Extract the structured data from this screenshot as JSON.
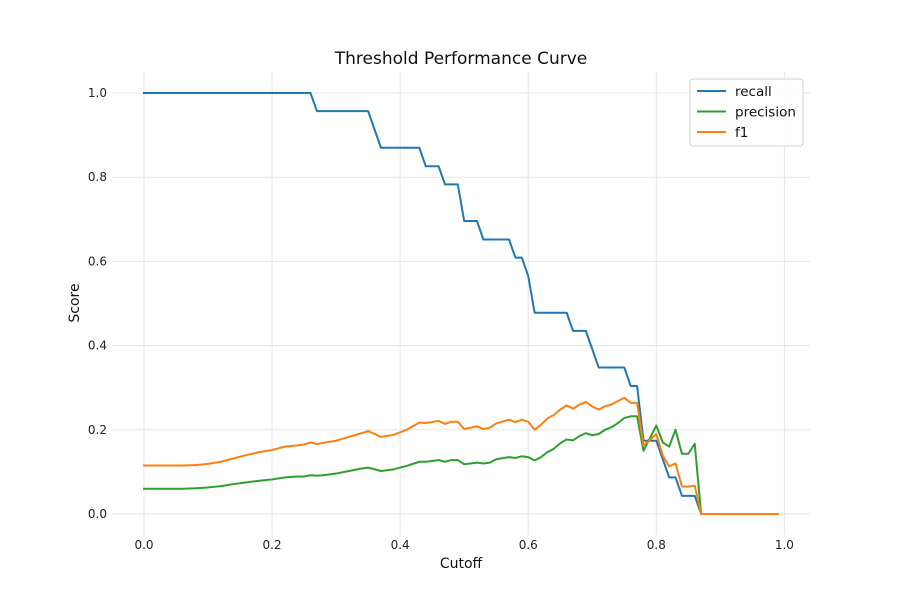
{
  "chart_data": {
    "type": "line",
    "title": "Threshold Performance Curve",
    "xlabel": "Cutoff",
    "ylabel": "Score",
    "xlim": [
      -0.05,
      1.04
    ],
    "ylim": [
      -0.05,
      1.05
    ],
    "xticks": [
      0.0,
      0.2,
      0.4,
      0.6,
      0.8,
      1.0
    ],
    "xtick_labels": [
      "0.0",
      "0.2",
      "0.4",
      "0.6",
      "0.8",
      "1.0"
    ],
    "yticks": [
      0.0,
      0.2,
      0.4,
      0.6,
      0.8,
      1.0
    ],
    "ytick_labels": [
      "0.0",
      "0.2",
      "0.4",
      "0.6",
      "0.8",
      "1.0"
    ],
    "grid": true,
    "legend_position": "top-right",
    "series": [
      {
        "name": "recall",
        "color": "#1f77b4",
        "x": [
          0.0,
          0.26,
          0.27,
          0.35,
          0.37,
          0.43,
          0.44,
          0.46,
          0.47,
          0.49,
          0.5,
          0.52,
          0.53,
          0.57,
          0.58,
          0.59,
          0.6,
          0.61,
          0.66,
          0.67,
          0.69,
          0.71,
          0.75,
          0.76,
          0.77,
          0.78,
          0.8,
          0.82,
          0.83,
          0.84,
          0.85,
          0.86,
          0.87,
          0.99
        ],
        "y": [
          1.0,
          1.0,
          0.957,
          0.957,
          0.87,
          0.87,
          0.826,
          0.826,
          0.783,
          0.783,
          0.696,
          0.696,
          0.652,
          0.652,
          0.609,
          0.609,
          0.565,
          0.478,
          0.478,
          0.435,
          0.435,
          0.348,
          0.348,
          0.304,
          0.304,
          0.174,
          0.174,
          0.087,
          0.087,
          0.043,
          0.043,
          0.043,
          0.0,
          0.0
        ]
      },
      {
        "name": "precision",
        "color": "#2ca02c",
        "x": [
          0.0,
          0.02,
          0.04,
          0.06,
          0.08,
          0.1,
          0.12,
          0.14,
          0.16,
          0.18,
          0.2,
          0.22,
          0.24,
          0.25,
          0.26,
          0.27,
          0.28,
          0.3,
          0.32,
          0.34,
          0.35,
          0.37,
          0.39,
          0.41,
          0.43,
          0.44,
          0.46,
          0.47,
          0.48,
          0.49,
          0.5,
          0.52,
          0.53,
          0.54,
          0.55,
          0.57,
          0.58,
          0.59,
          0.6,
          0.61,
          0.62,
          0.63,
          0.64,
          0.65,
          0.66,
          0.67,
          0.68,
          0.69,
          0.7,
          0.71,
          0.72,
          0.73,
          0.74,
          0.75,
          0.76,
          0.77,
          0.78,
          0.79,
          0.8,
          0.81,
          0.82,
          0.83,
          0.84,
          0.85,
          0.86,
          0.87,
          0.99
        ],
        "y": [
          0.06,
          0.06,
          0.06,
          0.06,
          0.061,
          0.063,
          0.066,
          0.071,
          0.075,
          0.079,
          0.082,
          0.087,
          0.089,
          0.089,
          0.092,
          0.091,
          0.092,
          0.096,
          0.102,
          0.108,
          0.11,
          0.102,
          0.106,
          0.114,
          0.124,
          0.124,
          0.128,
          0.124,
          0.128,
          0.128,
          0.118,
          0.122,
          0.12,
          0.122,
          0.13,
          0.135,
          0.133,
          0.137,
          0.135,
          0.127,
          0.135,
          0.147,
          0.155,
          0.168,
          0.177,
          0.175,
          0.185,
          0.192,
          0.187,
          0.19,
          0.2,
          0.206,
          0.216,
          0.228,
          0.232,
          0.232,
          0.15,
          0.18,
          0.21,
          0.17,
          0.16,
          0.2,
          0.143,
          0.143,
          0.167,
          0.0,
          0.0
        ]
      },
      {
        "name": "f1",
        "color": "#ff7f0e",
        "x": [
          0.0,
          0.02,
          0.04,
          0.06,
          0.08,
          0.1,
          0.12,
          0.14,
          0.16,
          0.18,
          0.2,
          0.22,
          0.24,
          0.25,
          0.26,
          0.27,
          0.28,
          0.3,
          0.32,
          0.34,
          0.35,
          0.37,
          0.39,
          0.41,
          0.43,
          0.44,
          0.46,
          0.47,
          0.48,
          0.49,
          0.5,
          0.52,
          0.53,
          0.54,
          0.55,
          0.57,
          0.58,
          0.59,
          0.6,
          0.61,
          0.62,
          0.63,
          0.64,
          0.65,
          0.66,
          0.67,
          0.68,
          0.69,
          0.7,
          0.71,
          0.72,
          0.73,
          0.74,
          0.75,
          0.76,
          0.77,
          0.78,
          0.79,
          0.8,
          0.81,
          0.82,
          0.83,
          0.84,
          0.85,
          0.86,
          0.87,
          0.99
        ],
        "y": [
          0.115,
          0.115,
          0.115,
          0.115,
          0.116,
          0.119,
          0.124,
          0.132,
          0.14,
          0.147,
          0.152,
          0.16,
          0.163,
          0.165,
          0.17,
          0.166,
          0.169,
          0.174,
          0.183,
          0.192,
          0.197,
          0.183,
          0.188,
          0.2,
          0.217,
          0.216,
          0.221,
          0.214,
          0.219,
          0.219,
          0.202,
          0.208,
          0.202,
          0.205,
          0.215,
          0.224,
          0.218,
          0.224,
          0.219,
          0.2,
          0.212,
          0.227,
          0.235,
          0.248,
          0.258,
          0.25,
          0.26,
          0.266,
          0.255,
          0.248,
          0.256,
          0.26,
          0.268,
          0.276,
          0.264,
          0.264,
          0.163,
          0.176,
          0.19,
          0.139,
          0.113,
          0.12,
          0.065,
          0.065,
          0.067,
          0.0,
          0.0
        ]
      }
    ]
  }
}
